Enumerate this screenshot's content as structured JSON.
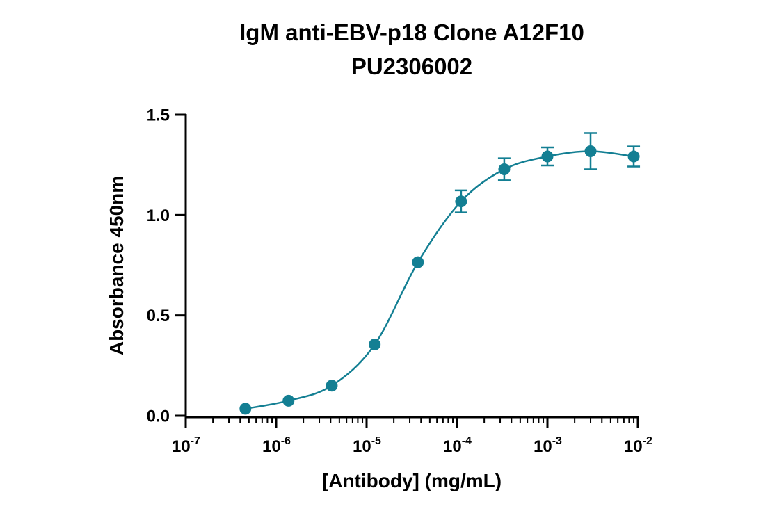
{
  "chart_data": {
    "type": "scatter",
    "title_lines": [
      "IgM anti-EBV-p18 Clone A12F10",
      "PU2306002"
    ],
    "xlabel": "[Antibody] (mg/mL)",
    "ylabel": "Absorbance 450nm",
    "x_scale": "log",
    "xlim": [
      1e-07,
      0.01
    ],
    "ylim": [
      0,
      1.5
    ],
    "x_ticks": [
      {
        "value": 1e-07,
        "base": "10",
        "exp": "-7"
      },
      {
        "value": 1e-06,
        "base": "10",
        "exp": "-6"
      },
      {
        "value": 1e-05,
        "base": "10",
        "exp": "-5"
      },
      {
        "value": 0.0001,
        "base": "10",
        "exp": "-4"
      },
      {
        "value": 0.001,
        "base": "10",
        "exp": "-3"
      },
      {
        "value": 0.01,
        "base": "10",
        "exp": "-2"
      }
    ],
    "y_ticks": [
      {
        "value": 0.0,
        "label": "0.0"
      },
      {
        "value": 0.5,
        "label": "0.5"
      },
      {
        "value": 1.0,
        "label": "1.0"
      },
      {
        "value": 1.5,
        "label": "1.5"
      }
    ],
    "grid": false,
    "series": [
      {
        "color": "#137f93",
        "points": [
          {
            "x": 4.57e-07,
            "y": 0.035,
            "err": 0
          },
          {
            "x": 1.37e-06,
            "y": 0.075,
            "err": 0
          },
          {
            "x": 4.12e-06,
            "y": 0.15,
            "err": 0
          },
          {
            "x": 1.23e-05,
            "y": 0.355,
            "err": 0
          },
          {
            "x": 3.7e-05,
            "y": 0.765,
            "err": 0
          },
          {
            "x": 0.000111,
            "y": 1.068,
            "err": 0.055
          },
          {
            "x": 0.000333,
            "y": 1.228,
            "err": 0.055
          },
          {
            "x": 0.001,
            "y": 1.292,
            "err": 0.045
          },
          {
            "x": 0.003,
            "y": 1.318,
            "err": 0.09
          },
          {
            "x": 0.009,
            "y": 1.292,
            "err": 0.05
          }
        ]
      }
    ]
  }
}
